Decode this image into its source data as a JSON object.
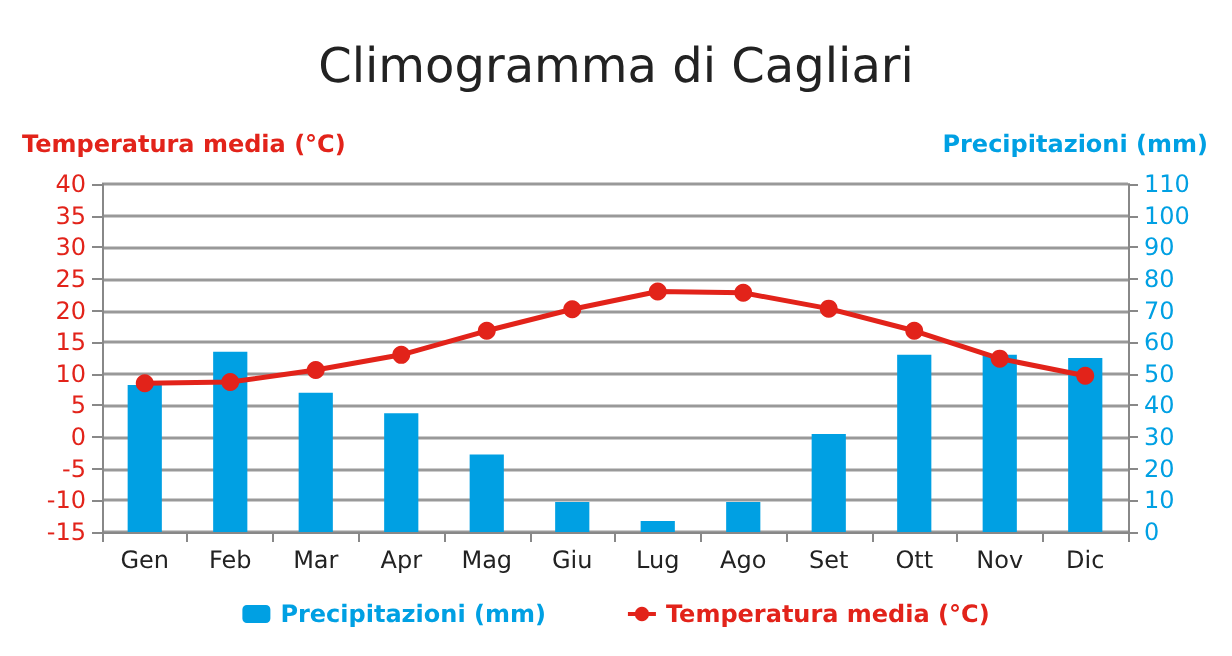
{
  "chart_data": {
    "type": "bar",
    "title": "Climogramma di Cagliari",
    "ylabel": "Temperatura media (°C)",
    "y2label": "Precipitazioni (mm)",
    "categories": [
      "Gen",
      "Feb",
      "Mar",
      "Apr",
      "Mag",
      "Giu",
      "Lug",
      "Ago",
      "Set",
      "Ott",
      "Nov",
      "Dic"
    ],
    "series": [
      {
        "name": "Precipitazioni (mm)",
        "axis": "y2",
        "color": "#00a0e3",
        "values": [
          46.5,
          57,
          44,
          37.5,
          24.5,
          9.5,
          3.5,
          9.5,
          31,
          56,
          56,
          55
        ]
      },
      {
        "name": "Temperatura media (°C)",
        "type": "line",
        "color": "#e2231a",
        "marker": "circle",
        "line_style": "solid",
        "values": [
          8.5,
          8.7,
          10.6,
          13,
          16.8,
          20.2,
          23,
          22.8,
          20.3,
          16.8,
          12.4,
          9.7
        ]
      }
    ],
    "ylim": [
      -15,
      40
    ],
    "yticks": [
      -15,
      -10,
      -5,
      0,
      5,
      10,
      15,
      20,
      25,
      30,
      35,
      40
    ],
    "y2lim": [
      0,
      110
    ],
    "y2ticks": [
      0,
      10,
      20,
      30,
      40,
      50,
      60,
      70,
      80,
      90,
      100,
      110
    ],
    "grid": "y",
    "legend": "bottom"
  }
}
